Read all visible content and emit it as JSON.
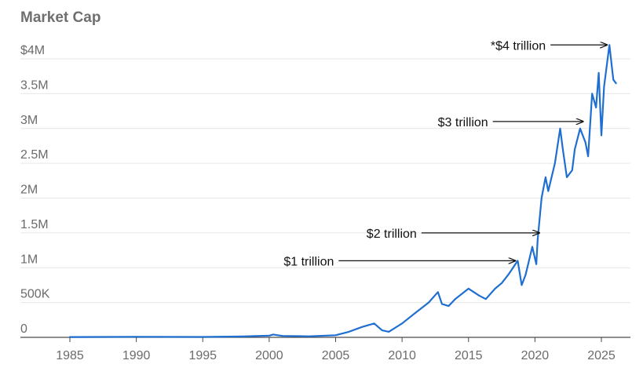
{
  "title": "Market Cap",
  "colors": {
    "series": "#1f6fd1",
    "grid": "#e6e6e6",
    "axis": "#4a4a4a",
    "text": "#6b6b6b",
    "annotation": "#111111"
  },
  "chart_data": {
    "type": "line",
    "title": "Market Cap",
    "xlabel": "",
    "ylabel": "",
    "xlim": [
      1983,
      2027
    ],
    "ylim": [
      0,
      4200000
    ],
    "grid": true,
    "y_ticks": [
      {
        "value": 0,
        "label": "0"
      },
      {
        "value": 500000,
        "label": "500K"
      },
      {
        "value": 1000000,
        "label": "1M"
      },
      {
        "value": 1500000,
        "label": "1.5M"
      },
      {
        "value": 2000000,
        "label": "2M"
      },
      {
        "value": 2500000,
        "label": "2.5M"
      },
      {
        "value": 3000000,
        "label": "3M"
      },
      {
        "value": 3500000,
        "label": "3.5M"
      },
      {
        "value": 4000000,
        "label": "$4M"
      }
    ],
    "x_ticks": [
      {
        "value": 1985,
        "label": "1985"
      },
      {
        "value": 1990,
        "label": "1990"
      },
      {
        "value": 1995,
        "label": "1995"
      },
      {
        "value": 2000,
        "label": "2000"
      },
      {
        "value": 2005,
        "label": "2005"
      },
      {
        "value": 2010,
        "label": "2010"
      },
      {
        "value": 2015,
        "label": "2015"
      },
      {
        "value": 2020,
        "label": "2020"
      },
      {
        "value": 2025,
        "label": "2025"
      }
    ],
    "x": [
      1985,
      1987,
      1990,
      1995,
      1998,
      2000,
      2000.3,
      2001,
      2003,
      2005,
      2006,
      2007,
      2007.9,
      2008.5,
      2009,
      2010,
      2011,
      2012,
      2012.7,
      2013,
      2013.5,
      2014,
      2015,
      2015.8,
      2016.3,
      2017,
      2017.5,
      2018,
      2018.7,
      2019,
      2019.3,
      2019.8,
      2020.1,
      2020.2,
      2020.5,
      2020.8,
      2021,
      2021.5,
      2021.9,
      2022.1,
      2022.4,
      2022.8,
      2023,
      2023.4,
      2023.8,
      2024,
      2024.3,
      2024.6,
      2024.8,
      2025,
      2025.2,
      2025.4,
      2025.6,
      2025.9,
      2026.1
    ],
    "values": [
      5000,
      6000,
      8000,
      6000,
      12000,
      25000,
      40000,
      20000,
      15000,
      30000,
      80000,
      150000,
      200000,
      100000,
      80000,
      200000,
      350000,
      500000,
      650000,
      480000,
      450000,
      550000,
      700000,
      600000,
      550000,
      700000,
      780000,
      900000,
      1100000,
      750000,
      900000,
      1300000,
      1050000,
      1400000,
      2000000,
      2300000,
      2100000,
      2500000,
      3000000,
      2700000,
      2300000,
      2400000,
      2700000,
      3000000,
      2800000,
      2600000,
      3500000,
      3300000,
      3800000,
      2900000,
      3600000,
      3900000,
      4200000,
      3700000,
      3650000
    ],
    "annotations": [
      {
        "text": "$1 trillion",
        "year": 2018.7,
        "value": 1100000
      },
      {
        "text": "$2 trillion",
        "year": 2020.5,
        "value": 1500000
      },
      {
        "text": "$3 trillion",
        "year": 2023.8,
        "value": 3100000
      },
      {
        "text": "*$4 trillion",
        "year": 2025.6,
        "value": 4200000
      }
    ]
  }
}
